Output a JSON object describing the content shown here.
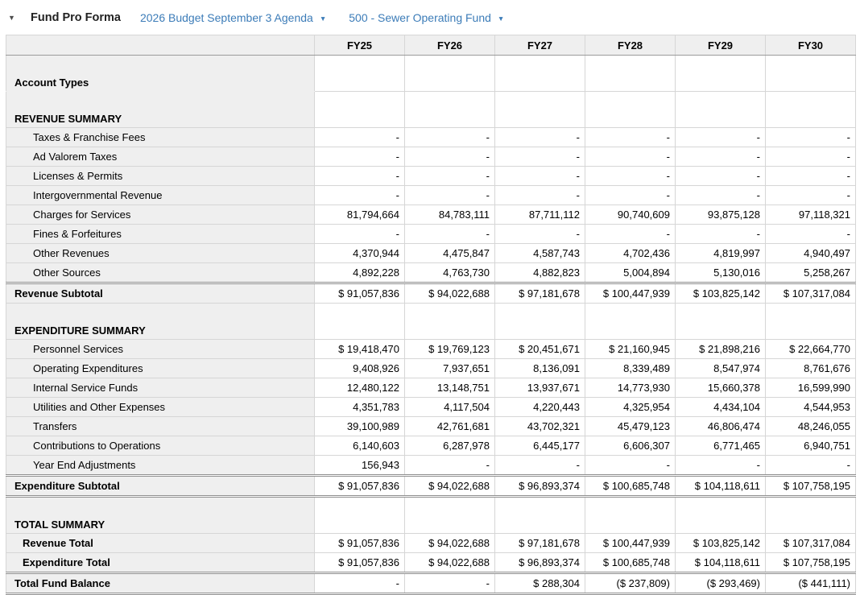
{
  "header": {
    "title": "Fund Pro Forma",
    "collapse_icon": "▼",
    "dropdown_caret": "▼",
    "dropdowns": [
      {
        "label": "2026 Budget September 3 Agenda"
      },
      {
        "label": "500 - Sewer Operating Fund"
      }
    ]
  },
  "colors": {
    "accent_blue": "#3c7cb8",
    "panel_bg": "#efefef",
    "border_light": "#d6d6d6",
    "border_dark": "#9b9b9b"
  },
  "table": {
    "columns": [
      "FY25",
      "FY26",
      "FY27",
      "FY28",
      "FY29",
      "FY30"
    ],
    "rows": [
      {
        "label": "Account Types",
        "type": "section",
        "hideLabelBorder": true,
        "values": [
          "",
          "",
          "",
          "",
          "",
          ""
        ]
      },
      {
        "label": "REVENUE SUMMARY",
        "type": "section",
        "values": [
          "",
          "",
          "",
          "",
          "",
          ""
        ]
      },
      {
        "label": "Taxes & Franchise Fees",
        "type": "detail",
        "values": [
          "-",
          "-",
          "-",
          "-",
          "-",
          "-"
        ]
      },
      {
        "label": "Ad Valorem Taxes",
        "type": "detail",
        "values": [
          "-",
          "-",
          "-",
          "-",
          "-",
          "-"
        ]
      },
      {
        "label": "Licenses & Permits",
        "type": "detail",
        "values": [
          "-",
          "-",
          "-",
          "-",
          "-",
          "-"
        ]
      },
      {
        "label": "Intergovernmental Revenue",
        "type": "detail",
        "values": [
          "-",
          "-",
          "-",
          "-",
          "-",
          "-"
        ]
      },
      {
        "label": "Charges for Services",
        "type": "detail",
        "values": [
          "81,794,664",
          "84,783,111",
          "87,711,112",
          "90,740,609",
          "93,875,128",
          "97,118,321"
        ]
      },
      {
        "label": "Fines & Forfeitures",
        "type": "detail",
        "values": [
          "-",
          "-",
          "-",
          "-",
          "-",
          "-"
        ]
      },
      {
        "label": "Other Revenues",
        "type": "detail",
        "values": [
          "4,370,944",
          "4,475,847",
          "4,587,743",
          "4,702,436",
          "4,819,997",
          "4,940,497"
        ]
      },
      {
        "label": "Other Sources",
        "type": "detail",
        "values": [
          "4,892,228",
          "4,763,730",
          "4,882,823",
          "5,004,894",
          "5,130,016",
          "5,258,267"
        ]
      },
      {
        "label": "Revenue Subtotal",
        "type": "subtotal",
        "dtop": true,
        "values": [
          "$ 91,057,836",
          "$ 94,022,688",
          "$ 97,181,678",
          "$ 100,447,939",
          "$ 103,825,142",
          "$ 107,317,084"
        ]
      },
      {
        "label": "EXPENDITURE SUMMARY",
        "type": "section",
        "values": [
          "",
          "",
          "",
          "",
          "",
          ""
        ]
      },
      {
        "label": "Personnel Services",
        "type": "detail",
        "values": [
          "$ 19,418,470",
          "$ 19,769,123",
          "$ 20,451,671",
          "$ 21,160,945",
          "$ 21,898,216",
          "$ 22,664,770"
        ]
      },
      {
        "label": "Operating Expenditures",
        "type": "detail",
        "values": [
          "9,408,926",
          "7,937,651",
          "8,136,091",
          "8,339,489",
          "8,547,974",
          "8,761,676"
        ]
      },
      {
        "label": "Internal Service Funds",
        "type": "detail",
        "values": [
          "12,480,122",
          "13,148,751",
          "13,937,671",
          "14,773,930",
          "15,660,378",
          "16,599,990"
        ]
      },
      {
        "label": "Utilities and Other Expenses",
        "type": "detail",
        "values": [
          "4,351,783",
          "4,117,504",
          "4,220,443",
          "4,325,954",
          "4,434,104",
          "4,544,953"
        ]
      },
      {
        "label": "Transfers",
        "type": "detail",
        "values": [
          "39,100,989",
          "42,761,681",
          "43,702,321",
          "45,479,123",
          "46,806,474",
          "48,246,055"
        ]
      },
      {
        "label": "Contributions to Operations",
        "type": "detail",
        "values": [
          "6,140,603",
          "6,287,978",
          "6,445,177",
          "6,606,307",
          "6,771,465",
          "6,940,751"
        ]
      },
      {
        "label": "Year End Adjustments",
        "type": "detail",
        "values": [
          "156,943",
          "-",
          "-",
          "-",
          "-",
          "-"
        ]
      },
      {
        "label": "Expenditure Subtotal",
        "type": "subtotal",
        "dtop": true,
        "dbottom": true,
        "values": [
          "$ 91,057,836",
          "$ 94,022,688",
          "$ 96,893,374",
          "$ 100,685,748",
          "$ 104,118,611",
          "$ 107,758,195"
        ]
      },
      {
        "label": "TOTAL SUMMARY",
        "type": "section",
        "values": [
          "",
          "",
          "",
          "",
          "",
          ""
        ]
      },
      {
        "label": "Revenue Total",
        "type": "total",
        "values": [
          "$ 91,057,836",
          "$ 94,022,688",
          "$ 97,181,678",
          "$ 100,447,939",
          "$ 103,825,142",
          "$ 107,317,084"
        ]
      },
      {
        "label": "Expenditure Total",
        "type": "total",
        "dbottom": true,
        "values": [
          "$ 91,057,836",
          "$ 94,022,688",
          "$ 96,893,374",
          "$ 100,685,748",
          "$ 104,118,611",
          "$ 107,758,195"
        ]
      },
      {
        "label": "Total Fund Balance",
        "type": "subtotal",
        "dbottom": true,
        "values": [
          "-",
          "-",
          "$ 288,304",
          "($ 237,809)",
          "($ 293,469)",
          "($ 441,111)"
        ]
      }
    ]
  }
}
